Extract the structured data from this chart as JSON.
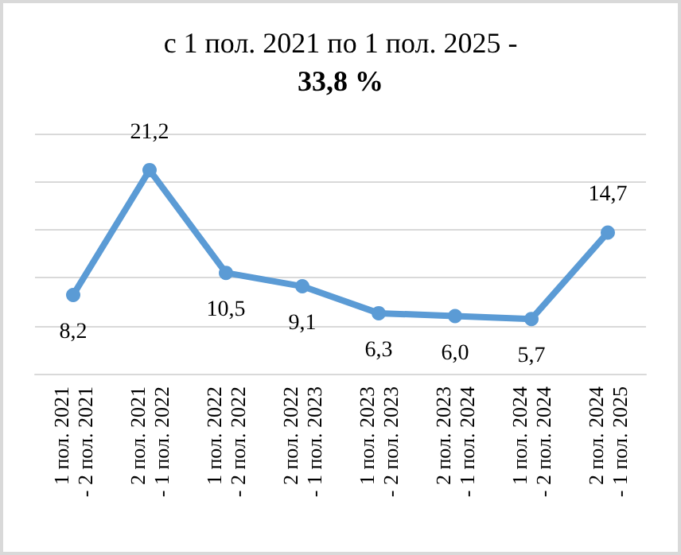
{
  "chart_data": {
    "type": "line",
    "title": "с 1 пол. 2021 по 1 пол. 2025 -\n33,8 %",
    "categories": [
      "1 пол. 2021\n- 2 пол. 2021",
      "2 пол. 2021\n- 1 пол. 2022",
      "1 пол. 2022\n- 2 пол. 2022",
      "2 пол. 2022\n- 1 пол. 2023",
      "1 пол. 2023\n- 2 пол. 2023",
      "2 пол. 2023\n- 1 пол. 2024",
      "1 пол. 2024\n- 2 пол. 2024",
      "2 пол. 2024\n- 1 пол. 2025"
    ],
    "series": [
      {
        "color": "#5b9bd5",
        "values": [
          8.2,
          21.2,
          10.5,
          9.1,
          6.3,
          6.0,
          5.7,
          14.7
        ],
        "value_labels": [
          "8,2",
          "21,2",
          "10,5",
          "9,1",
          "6,3",
          "6,0",
          "5,7",
          "14,7"
        ]
      }
    ],
    "grid": "y",
    "tick_labels": "x",
    "marker": "circle",
    "line_style": "solid"
  }
}
